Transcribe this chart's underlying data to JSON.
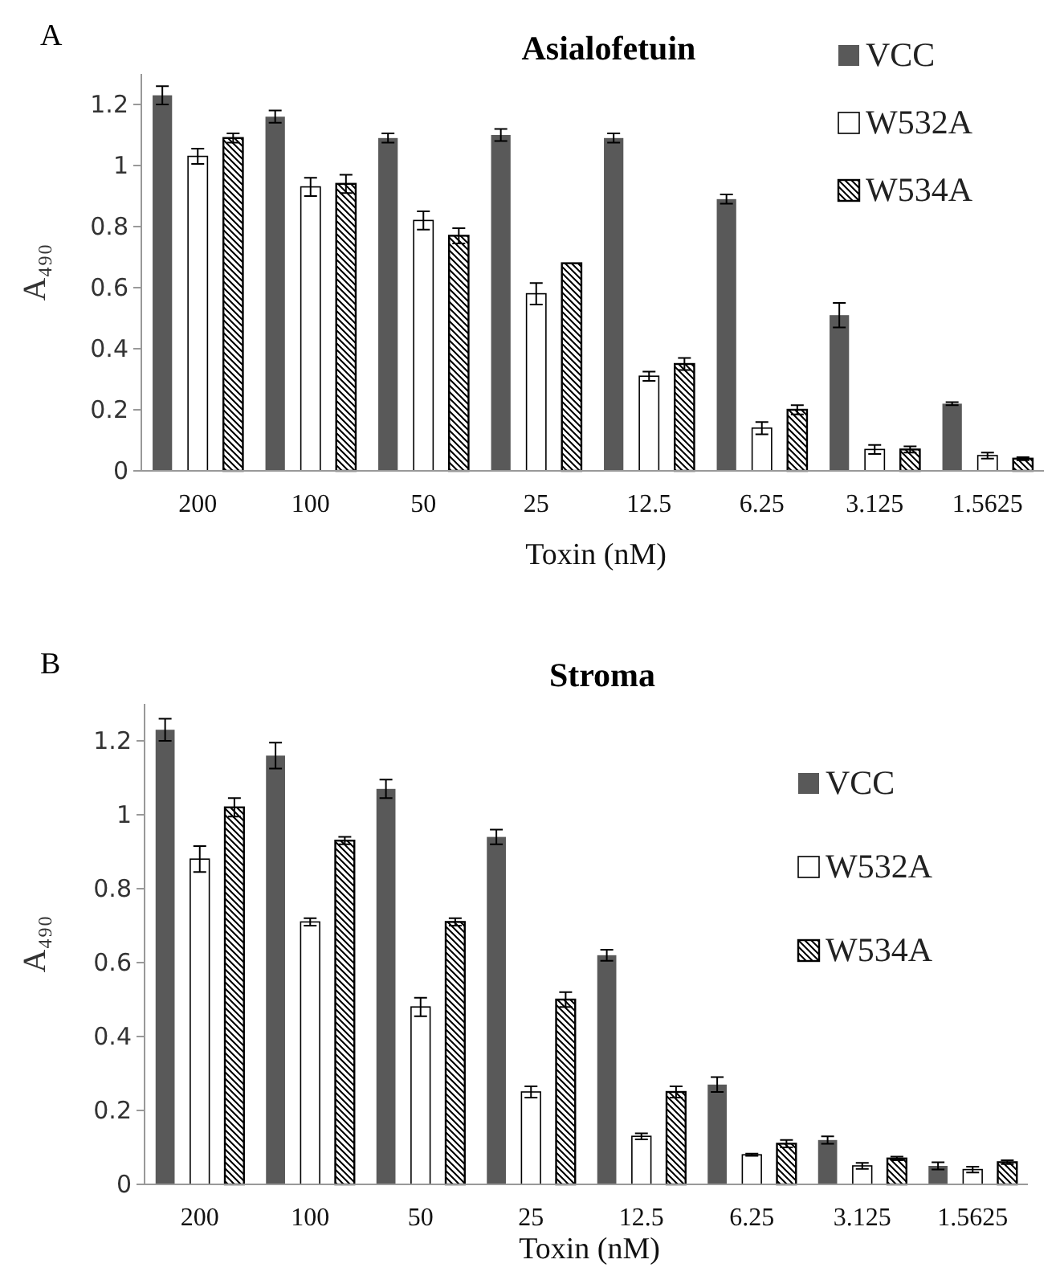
{
  "chart_data": [
    {
      "type": "bar",
      "title": "Asialofetuin",
      "xlabel": "Toxin (nM)",
      "ylabel": "A₄₉₀",
      "annotations": [
        "A"
      ],
      "categories": [
        "200",
        "100",
        "50",
        "25",
        "12.5",
        "6.25",
        "3.125",
        "1.5625"
      ],
      "ylim": [
        0,
        1.3
      ],
      "yticks": [
        0,
        0.2,
        0.4,
        0.6,
        0.8,
        1,
        1.2
      ],
      "grid": false,
      "legend": "top right",
      "series": [
        {
          "name": "VCC",
          "color": "#595959",
          "values": [
            1.23,
            1.16,
            1.09,
            1.1,
            1.09,
            0.89,
            0.51,
            0.22
          ],
          "errors": [
            0.03,
            0.02,
            0.015,
            0.02,
            0.015,
            0.015,
            0.04,
            0.005
          ]
        },
        {
          "name": "W532A",
          "color": "#ffffff",
          "values": [
            1.03,
            0.93,
            0.82,
            0.58,
            0.31,
            0.14,
            0.07,
            0.05
          ],
          "errors": [
            0.025,
            0.03,
            0.03,
            0.035,
            0.015,
            0.02,
            0.015,
            0.01
          ]
        },
        {
          "name": "W534A",
          "color": "#000000",
          "values": [
            1.09,
            0.94,
            0.77,
            0.68,
            0.35,
            0.2,
            0.07,
            0.04
          ],
          "errors": [
            0.015,
            0.03,
            0.025,
            null,
            0.02,
            0.015,
            0.01,
            0.005
          ]
        }
      ]
    },
    {
      "type": "bar",
      "title": "Stroma",
      "xlabel": "Toxin (nM)",
      "ylabel": "A₄₉₀",
      "annotations": [
        "B"
      ],
      "categories": [
        "200",
        "100",
        "50",
        "25",
        "12.5",
        "6.25",
        "3.125",
        "1.5625"
      ],
      "ylim": [
        0,
        1.3
      ],
      "yticks": [
        0,
        0.2,
        0.4,
        0.6,
        0.8,
        1,
        1.2
      ],
      "grid": false,
      "legend": "right",
      "series": [
        {
          "name": "VCC",
          "color": "#595959",
          "values": [
            1.23,
            1.16,
            1.07,
            0.94,
            0.62,
            0.27,
            0.12,
            0.05
          ],
          "errors": [
            0.03,
            0.035,
            0.025,
            0.02,
            0.015,
            0.02,
            0.01,
            0.01
          ]
        },
        {
          "name": "W532A",
          "color": "#ffffff",
          "values": [
            0.88,
            0.71,
            0.48,
            0.25,
            0.13,
            0.08,
            0.05,
            0.04
          ],
          "errors": [
            0.035,
            0.01,
            0.025,
            0.015,
            0.008,
            0.003,
            0.008,
            0.008
          ]
        },
        {
          "name": "W534A",
          "color": "#000000",
          "values": [
            1.02,
            0.93,
            0.71,
            0.5,
            0.25,
            0.11,
            0.07,
            0.06
          ],
          "errors": [
            0.025,
            0.01,
            0.01,
            0.02,
            0.015,
            0.01,
            0.005,
            0.005
          ]
        }
      ]
    }
  ]
}
